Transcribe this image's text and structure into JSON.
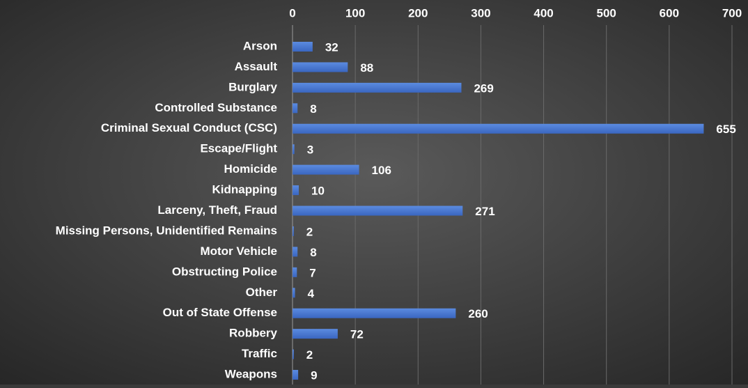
{
  "chart_data": {
    "type": "bar",
    "orientation": "horizontal",
    "categories": [
      "Arson",
      "Assault",
      "Burglary",
      "Controlled Substance",
      "Criminal Sexual Conduct (CSC)",
      "Escape/Flight",
      "Homicide",
      "Kidnapping",
      "Larceny, Theft, Fraud",
      "Missing Persons, Unidentified Remains",
      "Motor Vehicle",
      "Obstructing Police",
      "Other",
      "Out of State Offense",
      "Robbery",
      "Traffic",
      "Weapons"
    ],
    "values": [
      32,
      88,
      269,
      8,
      655,
      3,
      106,
      10,
      271,
      2,
      8,
      7,
      4,
      260,
      72,
      2,
      9
    ],
    "color": "#4a78d0",
    "xlim": [
      0,
      700
    ],
    "xticks": [
      0,
      100,
      200,
      300,
      400,
      500,
      600,
      700
    ],
    "grid": true,
    "axis_position": "top"
  }
}
